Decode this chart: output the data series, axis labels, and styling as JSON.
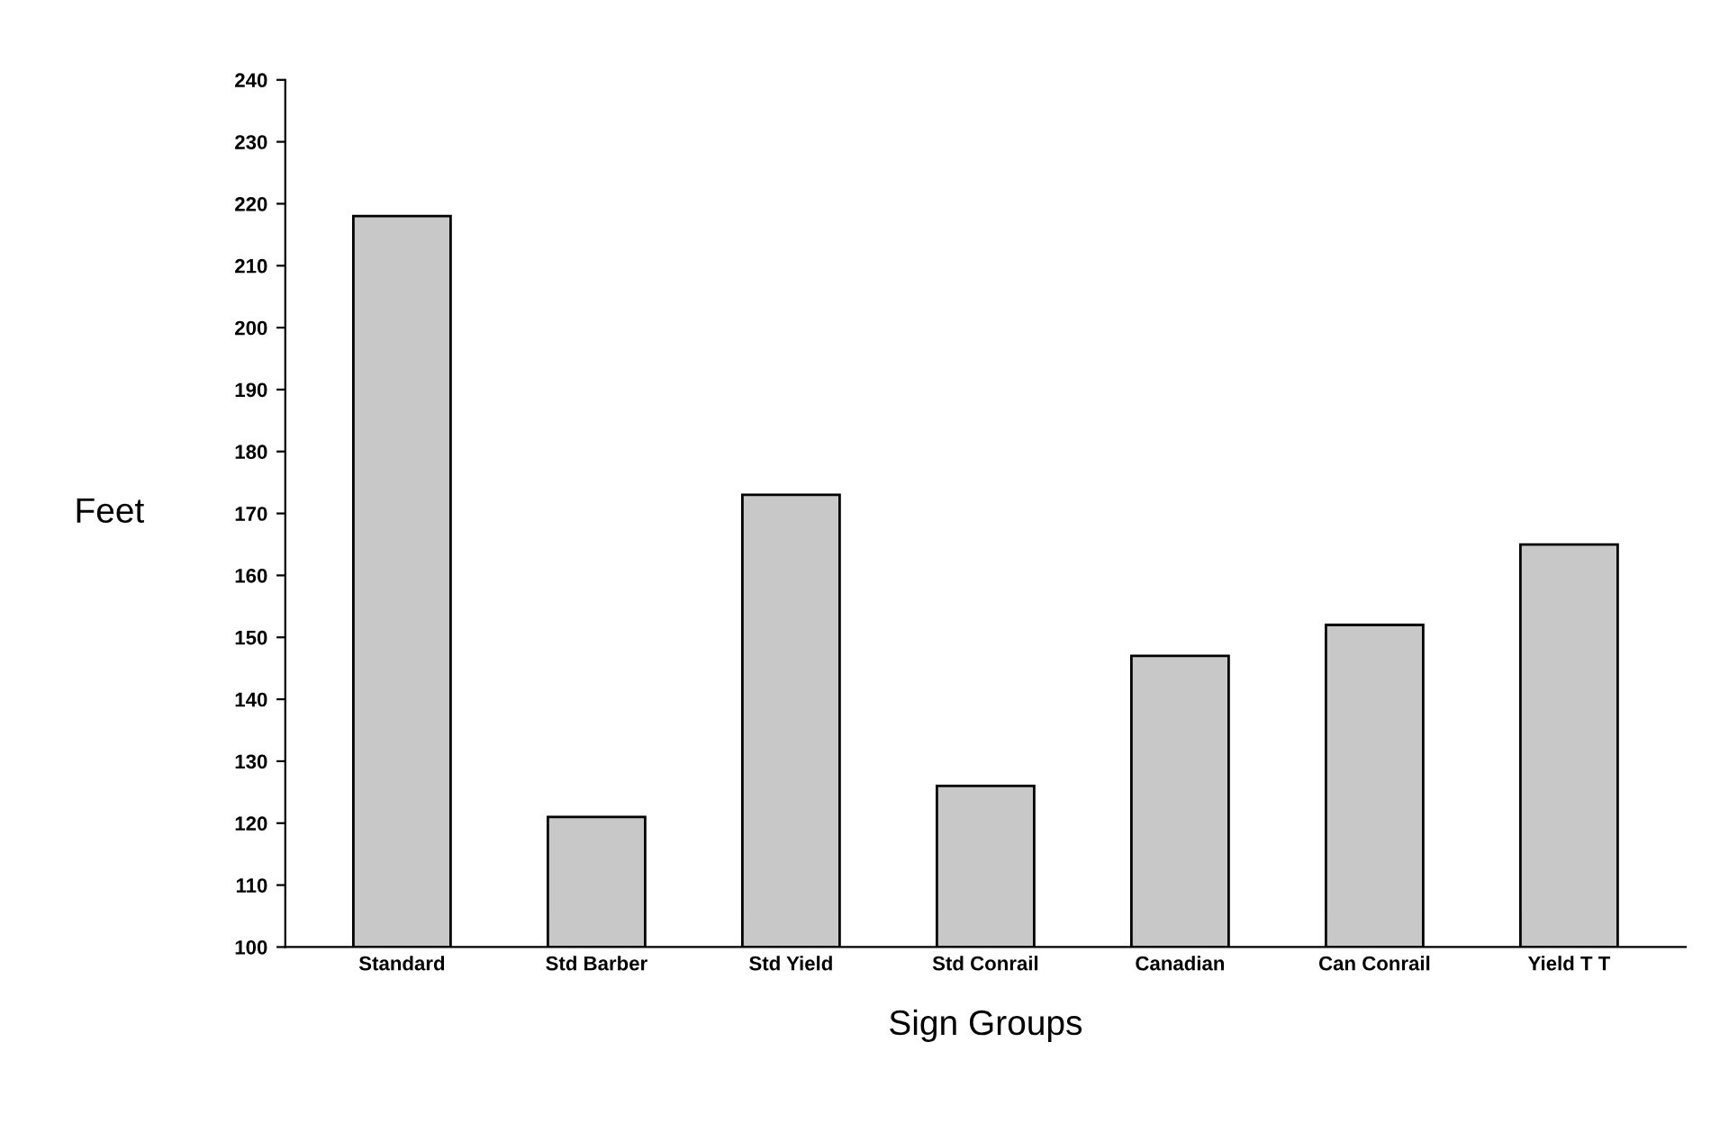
{
  "chart_data": {
    "type": "bar",
    "xlabel": "Sign Groups",
    "ylabel": "Feet",
    "categories": [
      "Standard",
      "Std Barber",
      "Std Yield",
      "Std Conrail",
      "Canadian",
      "Can Conrail",
      "Yield T T"
    ],
    "values": [
      218,
      121,
      173,
      126,
      147,
      152,
      165
    ],
    "color": "#c8c8c8",
    "ylim": [
      100,
      240
    ],
    "yticks": [
      100,
      110,
      120,
      130,
      140,
      150,
      160,
      170,
      180,
      190,
      200,
      210,
      220,
      230,
      240
    ],
    "grid": false,
    "legend": false
  }
}
